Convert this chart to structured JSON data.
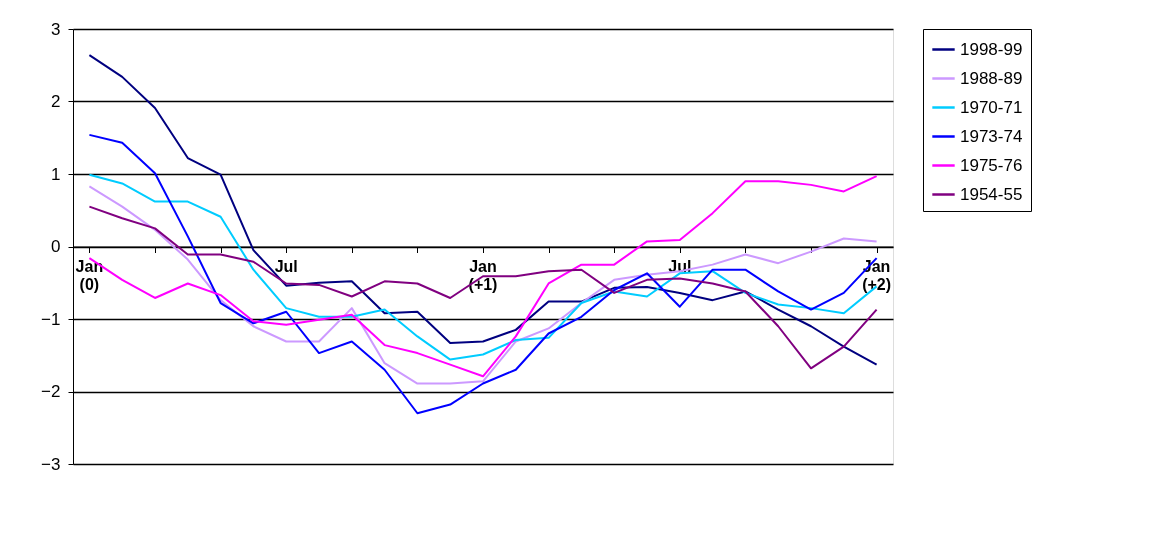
{
  "chart_data": {
    "type": "line",
    "categories": [
      "Jan (0)",
      null,
      null,
      null,
      null,
      null,
      "Jul",
      null,
      null,
      null,
      null,
      null,
      "Jan (+1)",
      null,
      null,
      null,
      null,
      null,
      "Jul",
      null,
      null,
      null,
      null,
      null,
      "Jan (+2)"
    ],
    "ylim": [
      -3,
      3
    ],
    "yticks": [
      -3,
      -2,
      -1,
      0,
      1,
      2,
      3
    ],
    "grid": "y",
    "legend": "right",
    "line_style": "solid",
    "marker": "none",
    "series": [
      {
        "name": "1998-99",
        "color": "#000080",
        "values": [
          2.64,
          2.34,
          1.91,
          1.22,
          0.99,
          -0.05,
          -0.54,
          -0.5,
          -0.48,
          -0.92,
          -0.9,
          -1.33,
          -1.31,
          -1.15,
          -0.76,
          -0.76,
          -0.57,
          -0.56,
          -0.64,
          -0.74,
          -0.62,
          -0.87,
          -1.1,
          -1.38,
          -1.63
        ]
      },
      {
        "name": "1988-89",
        "color": "#cc99ff",
        "values": [
          0.83,
          0.55,
          0.23,
          -0.18,
          -0.74,
          -1.1,
          -1.31,
          -1.31,
          -0.85,
          -1.61,
          -1.89,
          -1.89,
          -1.86,
          -1.31,
          -1.13,
          -0.78,
          -0.46,
          -0.39,
          -0.34,
          -0.25,
          -0.11,
          -0.23,
          -0.07,
          0.11,
          0.07
        ]
      },
      {
        "name": "1970-71",
        "color": "#00ccff",
        "values": [
          0.99,
          0.87,
          0.62,
          0.62,
          0.41,
          -0.32,
          -0.85,
          -0.97,
          -0.97,
          -0.87,
          -1.24,
          -1.56,
          -1.49,
          -1.29,
          -1.26,
          -0.78,
          -0.62,
          -0.69,
          -0.37,
          -0.34,
          -0.64,
          -0.8,
          -0.85,
          -0.92,
          -0.55
        ]
      },
      {
        "name": "1973-74",
        "color": "#0000ff",
        "values": [
          1.54,
          1.43,
          1.01,
          0.14,
          -0.78,
          -1.06,
          -0.9,
          -1.47,
          -1.31,
          -1.7,
          -2.3,
          -2.18,
          -1.89,
          -1.7,
          -1.2,
          -0.97,
          -0.6,
          -0.37,
          -0.83,
          -0.32,
          -0.32,
          -0.62,
          -0.87,
          -0.64,
          -0.16
        ]
      },
      {
        "name": "1975-76",
        "color": "#ff00ff",
        "values": [
          -0.16,
          -0.46,
          -0.71,
          -0.51,
          -0.67,
          -1.03,
          -1.08,
          -1.01,
          -0.94,
          -1.36,
          -1.47,
          -1.63,
          -1.79,
          -1.24,
          -0.51,
          -0.25,
          -0.25,
          0.07,
          0.09,
          0.46,
          0.9,
          0.9,
          0.85,
          0.76,
          0.97
        ]
      },
      {
        "name": "1954-55",
        "color": "#800080",
        "values": [
          0.55,
          0.39,
          0.25,
          -0.11,
          -0.11,
          -0.21,
          -0.51,
          -0.53,
          -0.69,
          -0.48,
          -0.51,
          -0.71,
          -0.41,
          -0.41,
          -0.34,
          -0.32,
          -0.64,
          -0.46,
          -0.44,
          -0.51,
          -0.62,
          -1.1,
          -1.68,
          -1.38,
          -0.87
        ]
      }
    ]
  }
}
